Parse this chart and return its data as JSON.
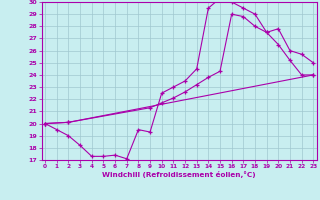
{
  "xlabel": "Windchill (Refroidissement éolien,°C)",
  "bg_color": "#c8eef0",
  "line_color": "#aa00aa",
  "grid_color": "#a0c8d0",
  "x_min": 0,
  "x_max": 23,
  "y_min": 17,
  "y_max": 30,
  "line1_x": [
    0,
    1,
    2,
    3,
    4,
    5,
    6,
    7,
    8,
    9,
    10,
    11,
    12,
    13,
    14,
    15,
    16,
    17,
    18,
    19,
    20,
    21,
    22,
    23
  ],
  "line1_y": [
    20.0,
    19.5,
    19.0,
    18.2,
    17.3,
    17.3,
    17.4,
    17.1,
    19.5,
    19.3,
    22.5,
    23.0,
    23.5,
    24.5,
    29.5,
    30.3,
    30.0,
    29.5,
    29.0,
    27.5,
    26.5,
    25.2,
    24.0,
    24.0
  ],
  "line2_x": [
    0,
    2,
    23
  ],
  "line2_y": [
    20.0,
    20.1,
    24.0
  ],
  "line3_x": [
    0,
    2,
    9,
    10,
    11,
    12,
    13,
    14,
    15,
    16,
    17,
    18,
    19,
    20,
    21,
    22,
    23
  ],
  "line3_y": [
    20.0,
    20.1,
    21.3,
    21.7,
    22.1,
    22.6,
    23.2,
    23.8,
    24.3,
    29.0,
    28.8,
    28.0,
    27.5,
    27.8,
    26.0,
    25.7,
    25.0
  ]
}
